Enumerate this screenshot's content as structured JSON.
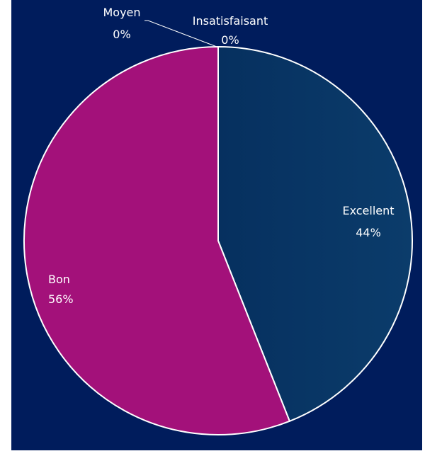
{
  "chart_data": {
    "type": "pie",
    "categories": [
      "Excellent",
      "Bon",
      "Moyen",
      "Insatisfaisant"
    ],
    "values": [
      44,
      56,
      0,
      0
    ],
    "value_labels": [
      "44%",
      "56%",
      "0%",
      "0%"
    ],
    "colors": {
      "Excellent": "#06305f",
      "Bon": "#a3117a",
      "Moyen": "#8a8a8a",
      "Insatisfaisant": "#5a5a5a",
      "background": "#001c5c",
      "slice_border": "#ffffff"
    }
  }
}
